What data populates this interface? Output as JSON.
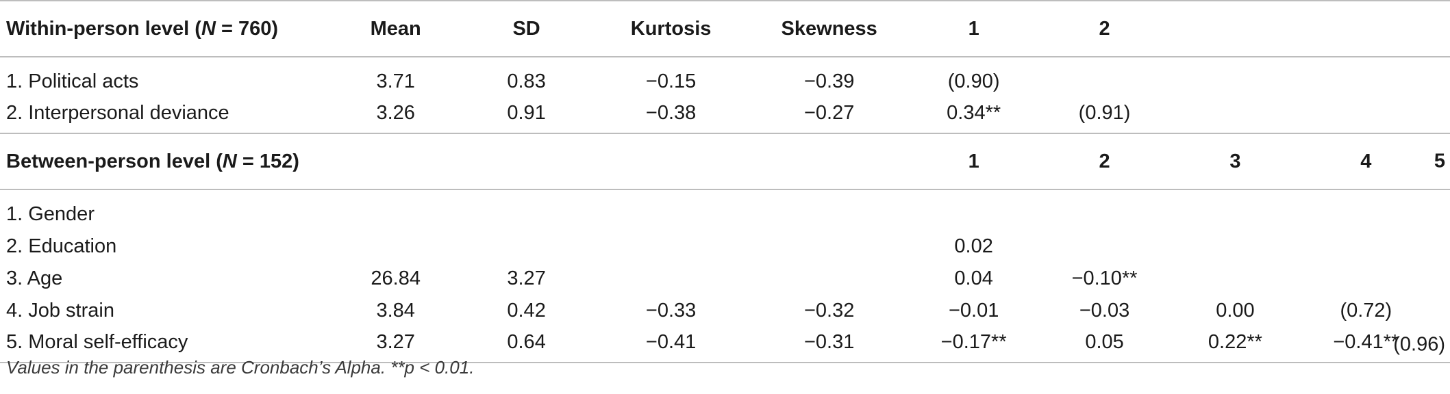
{
  "within": {
    "title_prefix": "Within-person level (",
    "title_n": "N",
    "title_suffix": " = 760)",
    "headers": [
      "Mean",
      "SD",
      "Kurtosis",
      "Skewness",
      "1",
      "2"
    ],
    "rows": [
      {
        "label": "1. Political acts",
        "mean": "3.71",
        "sd": "0.83",
        "kurtosis": "−0.15",
        "skewness": "−0.39",
        "c1": "(0.90)",
        "c2": ""
      },
      {
        "label": "2. Interpersonal deviance",
        "mean": "3.26",
        "sd": "0.91",
        "kurtosis": "−0.38",
        "skewness": "−0.27",
        "c1": "0.34**",
        "c2": "(0.91)"
      }
    ]
  },
  "between": {
    "title_prefix": "Between-person level (",
    "title_n": "N",
    "title_suffix": " = 152)",
    "headers": [
      "1",
      "2",
      "3",
      "4",
      "5"
    ],
    "rows": [
      {
        "label": "1. Gender",
        "mean": "",
        "sd": "",
        "kurtosis": "",
        "skewness": "",
        "c1": "",
        "c2": "",
        "c3": "",
        "c4": "",
        "c5": ""
      },
      {
        "label": "2. Education",
        "mean": "",
        "sd": "",
        "kurtosis": "",
        "skewness": "",
        "c1": "0.02",
        "c2": "",
        "c3": "",
        "c4": "",
        "c5": ""
      },
      {
        "label": "3. Age",
        "mean": "26.84",
        "sd": "3.27",
        "kurtosis": "",
        "skewness": "",
        "c1": "0.04",
        "c2": "−0.10**",
        "c3": "",
        "c4": "",
        "c5": ""
      },
      {
        "label": "4. Job strain",
        "mean": "3.84",
        "sd": "0.42",
        "kurtosis": "−0.33",
        "skewness": "−0.32",
        "c1": "−0.01",
        "c2": "−0.03",
        "c3": "0.00",
        "c4": "(0.72)",
        "c5": ""
      },
      {
        "label": "5. Moral self-efficacy",
        "mean": "3.27",
        "sd": "0.64",
        "kurtosis": "−0.41",
        "skewness": "−0.31",
        "c1": "−0.17**",
        "c2": "0.05",
        "c3": "0.22**",
        "c4": "−0.41**",
        "c5": "(0.96)"
      }
    ]
  },
  "note": {
    "text1": "Values in the parenthesis are Cronbach’s Alpha. **",
    "p": "p",
    "text2": " < 0.01."
  }
}
